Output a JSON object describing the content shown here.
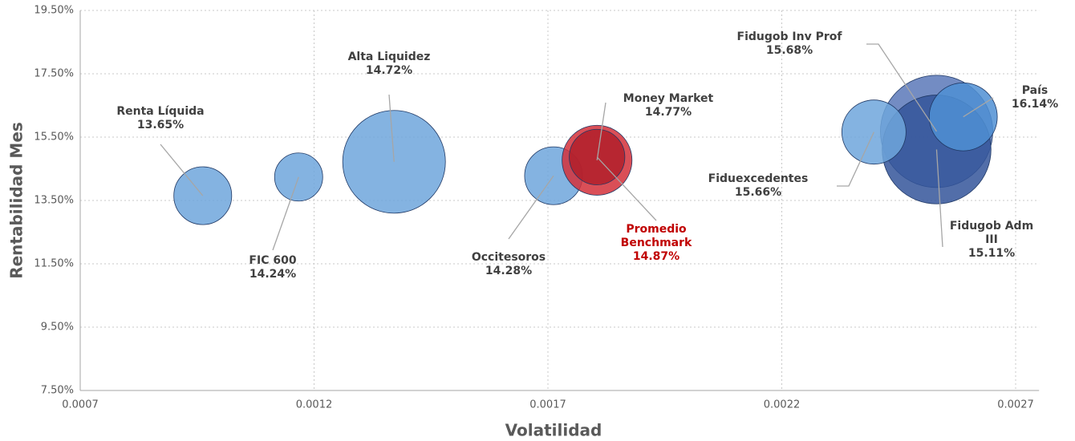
{
  "chart_data": {
    "type": "bubble",
    "xlabel": "Volatilidad",
    "ylabel": "Rentabilidad Mes",
    "xlim": [
      0.0007,
      0.00275
    ],
    "xticks": [
      0.0007,
      0.0012,
      0.0017,
      0.0022,
      0.0027
    ],
    "ylim": [
      7.5,
      19.5
    ],
    "yticks": [
      {
        "value": 7.5,
        "label": "7.50%"
      },
      {
        "value": 9.5,
        "label": "9.50%"
      },
      {
        "value": 11.5,
        "label": "11.50%"
      },
      {
        "value": 13.5,
        "label": "13.50%"
      },
      {
        "value": 15.5,
        "label": "15.50%"
      },
      {
        "value": 17.5,
        "label": "17.50%"
      },
      {
        "value": 19.5,
        "label": "19.50%"
      }
    ],
    "grid": true,
    "series": [
      {
        "name": "Fidugob Inv Prof",
        "color": "#5a78b8",
        "x": [
          0.002531
        ],
        "values": [
          15.68
        ],
        "value_labels": [
          "15.68%"
        ],
        "sizes": [
          49
        ]
      },
      {
        "name": "Fidugob Adm III",
        "color": "#34559a",
        "x": [
          0.002531
        ],
        "values": [
          15.11
        ],
        "value_labels": [
          "15.11%"
        ],
        "sizes": [
          46
        ]
      },
      {
        "name": "Fiduexcedentes",
        "color": "#6fa6dc",
        "x": [
          0.002397
        ],
        "values": [
          15.66
        ],
        "value_labels": [
          "15.66%"
        ],
        "sizes": [
          16
        ]
      },
      {
        "name": "País",
        "color": "#4f8fd3",
        "x": [
          0.002588
        ],
        "values": [
          16.14
        ],
        "value_labels": [
          "16.14%"
        ],
        "sizes": [
          18
        ]
      },
      {
        "name": "Renta Líquida",
        "color": "#6fa6dc",
        "x": [
          0.000962
        ],
        "values": [
          13.65
        ],
        "value_labels": [
          "13.65%"
        ],
        "sizes": [
          13
        ]
      },
      {
        "name": "FIC 600",
        "color": "#6fa6dc",
        "x": [
          0.001167
        ],
        "values": [
          14.24
        ],
        "value_labels": [
          "14.24%"
        ],
        "sizes": [
          9
        ]
      },
      {
        "name": "Alta Liquidez",
        "color": "#6fa6dc",
        "x": [
          0.001371
        ],
        "values": [
          14.72
        ],
        "value_labels": [
          "14.72%"
        ],
        "sizes": [
          41
        ]
      },
      {
        "name": "Occitesoros",
        "color": "#6fa6dc",
        "x": [
          0.001712
        ],
        "values": [
          14.28
        ],
        "value_labels": [
          "14.28%"
        ],
        "sizes": [
          13
        ]
      },
      {
        "name": "Money Market",
        "color": "#d3303a",
        "x": [
          0.001805
        ],
        "values": [
          14.77
        ],
        "value_labels": [
          "14.77%"
        ],
        "sizes": [
          19
        ]
      },
      {
        "name": "Promedio Benchmark",
        "color": "#b01f2a",
        "label_color": "#c00000",
        "x": [
          0.001805
        ],
        "values": [
          14.87
        ],
        "value_labels": [
          "14.87%"
        ],
        "sizes": [
          12
        ]
      }
    ]
  }
}
